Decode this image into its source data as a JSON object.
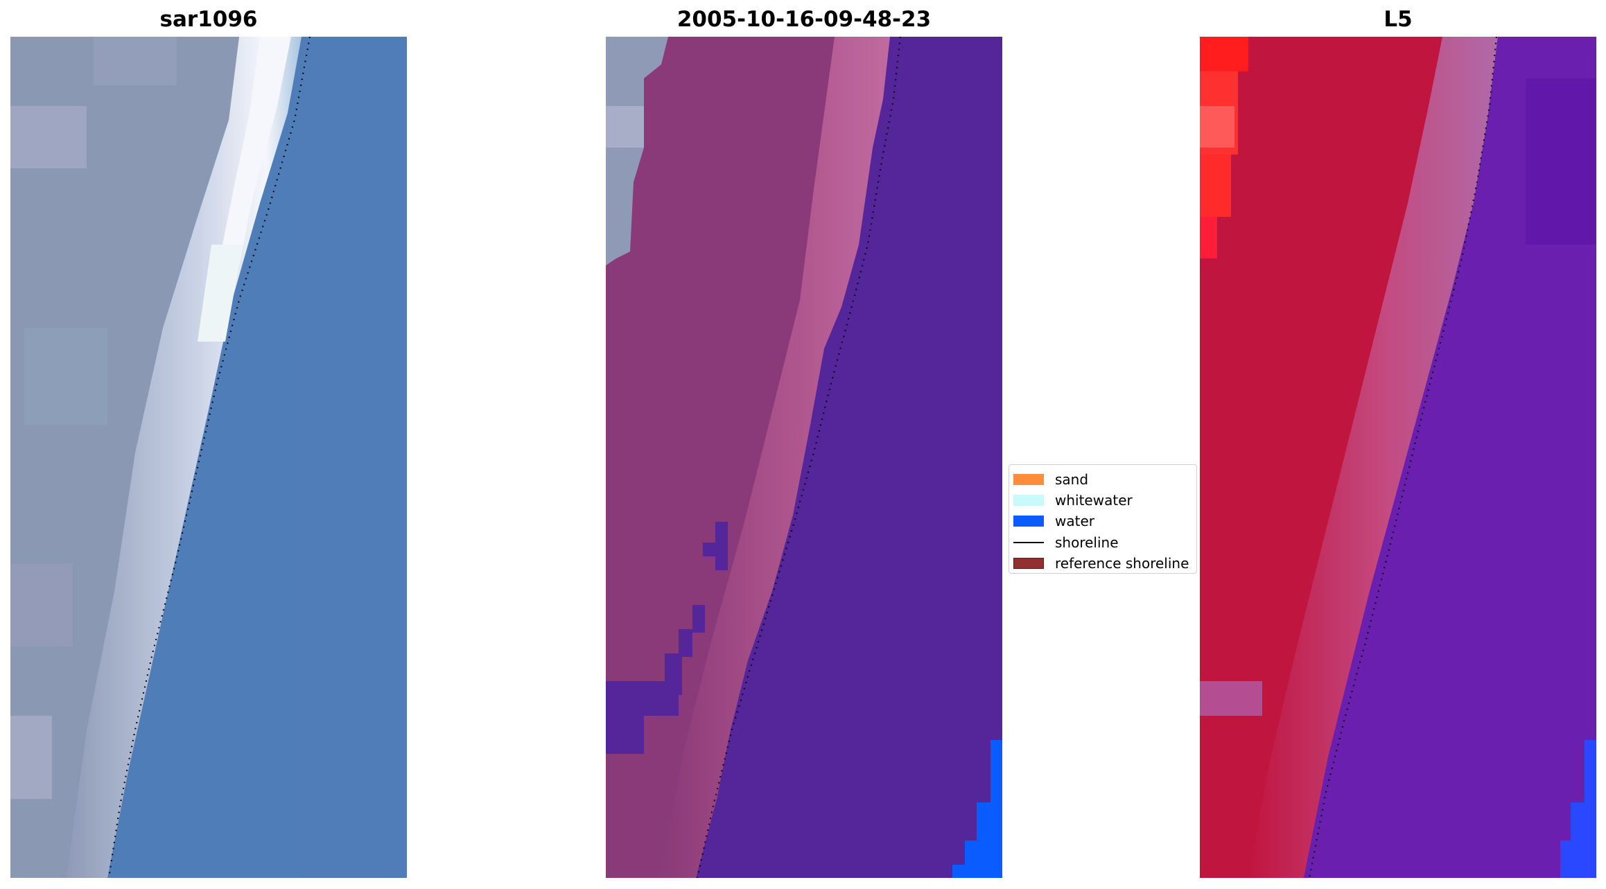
{
  "panels": {
    "left_title": "sar1096",
    "middle_title": "2005-10-16-09-48-23",
    "right_title": "L5"
  },
  "legend": {
    "items": [
      {
        "label": "sand",
        "color": "#ff8c3a",
        "kind": "patch"
      },
      {
        "label": "whitewater",
        "color": "#c8fafa",
        "kind": "patch"
      },
      {
        "label": "water",
        "color": "#0a5cff",
        "kind": "patch"
      },
      {
        "label": "shoreline",
        "color": "#000000",
        "kind": "line"
      },
      {
        "label": "reference shoreline",
        "color": "#922f2f",
        "kind": "patch",
        "edge": "#5a1a1a"
      }
    ]
  },
  "colors": {
    "rgb_land": "#8a98b4",
    "rgb_water": "#4f7db8",
    "class_land": "#8a3a78",
    "class_water": "#55259a",
    "class_bright_water": "#0a5cff",
    "index_land": "#c0153f",
    "index_water": "#5a16a0"
  }
}
